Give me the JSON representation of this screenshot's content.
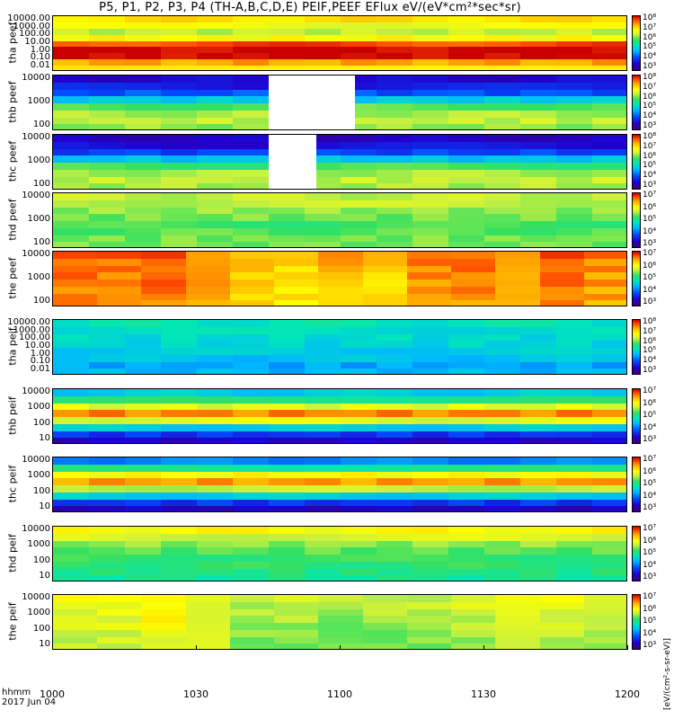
{
  "title": "P5, P1, P2, P3, P4 (TH-A,B,C,D,E) PEIF,PEEF EFlux eV/(eV*cm²*sec*sr)",
  "x_axis": {
    "label_unit": "hhmm",
    "date": "2017 Jun 04",
    "ticks": [
      "1000",
      "1030",
      "1100",
      "1130",
      "1200"
    ]
  },
  "colorbar_unit": "[eV/(cm²-s-sr-eV)]",
  "chart_data": [
    {
      "type": "heatmap",
      "panel": "tha_peef",
      "ylabel": "tha peef",
      "scale": "log",
      "yticks": [
        "10000.00",
        "1000.00",
        "100.00",
        "10.00",
        "1.00",
        "0.10",
        "0.01"
      ],
      "cbar_ticks": [
        "10⁸",
        "10⁷",
        "10⁶",
        "10⁵",
        "10⁴",
        "10³"
      ],
      "bands": [
        {
          "level": 0.78,
          "label": "top"
        },
        {
          "level": 0.72,
          "label": ""
        },
        {
          "level": 0.66,
          "label": ""
        },
        {
          "level": 0.74,
          "label": ""
        },
        {
          "level": 0.93,
          "label": ""
        },
        {
          "level": 1.0,
          "label": ""
        },
        {
          "level": 1.0,
          "label": ""
        },
        {
          "level": 0.85,
          "label": ""
        },
        {
          "level": 0.78,
          "label": "bottom"
        }
      ]
    },
    {
      "type": "heatmap",
      "panel": "thb_peef",
      "ylabel": "thb peef",
      "scale": "log",
      "yticks": [
        "10000",
        "1000",
        "100"
      ],
      "cbar_ticks": [
        "10⁸",
        "10⁷",
        "10⁶",
        "10⁵",
        "10⁴",
        "10³"
      ],
      "bands": [
        {
          "level": 0.12
        },
        {
          "level": 0.16
        },
        {
          "level": 0.24
        },
        {
          "level": 0.4
        },
        {
          "level": 0.58
        },
        {
          "level": 0.64
        },
        {
          "level": 0.66
        },
        {
          "level": 0.62
        }
      ],
      "gap": {
        "from_hhmm": "1045",
        "to_hhmm": "1103"
      }
    },
    {
      "type": "heatmap",
      "panel": "thc_peef",
      "ylabel": "thc peef",
      "scale": "log",
      "yticks": [
        "10000",
        "1000",
        "100"
      ],
      "cbar_ticks": [
        "10⁸",
        "10⁷",
        "10⁶",
        "10⁵",
        "10⁴",
        "10³"
      ],
      "bands": [
        {
          "level": 0.1
        },
        {
          "level": 0.14
        },
        {
          "level": 0.22
        },
        {
          "level": 0.38
        },
        {
          "level": 0.56
        },
        {
          "level": 0.64
        },
        {
          "level": 0.66
        },
        {
          "level": 0.64
        }
      ],
      "gap": {
        "from_hhmm": "1045",
        "to_hhmm": "1055"
      }
    },
    {
      "type": "heatmap",
      "panel": "thd_peef",
      "ylabel": "thd peef",
      "scale": "log",
      "yticks": [
        "10000",
        "1000",
        "100"
      ],
      "cbar_ticks": [
        "10⁷",
        "10⁶",
        "10⁵",
        "10⁴",
        "10³"
      ],
      "bands": [
        {
          "level": 0.66
        },
        {
          "level": 0.66
        },
        {
          "level": 0.62
        },
        {
          "level": 0.6
        },
        {
          "level": 0.56
        },
        {
          "level": 0.58
        },
        {
          "level": 0.6
        },
        {
          "level": 0.6
        }
      ]
    },
    {
      "type": "heatmap",
      "panel": "the_peef",
      "ylabel": "the peef",
      "scale": "log",
      "yticks": [
        "10000",
        "1000",
        "100"
      ],
      "cbar_ticks": [
        "10⁷",
        "10⁶",
        "10⁵",
        "10⁴",
        "10³"
      ],
      "bands": [
        {
          "level": 0.9
        },
        {
          "level": 0.88
        },
        {
          "level": 0.86
        },
        {
          "level": 0.84
        },
        {
          "level": 0.84
        },
        {
          "level": 0.82
        },
        {
          "level": 0.82
        },
        {
          "level": 0.8
        }
      ],
      "columns": [
        0.95,
        0.92,
        0.97,
        0.85,
        0.78,
        0.72,
        0.8,
        0.74,
        0.9,
        0.93,
        0.84,
        0.96,
        0.88
      ]
    },
    {
      "type": "heatmap",
      "panel": "tha_peif",
      "ylabel": "tha peif",
      "scale": "log",
      "yticks": [
        "10000.00",
        "1000.00",
        "100.00",
        "10.00",
        "1.00",
        "0.10",
        "0.01"
      ],
      "cbar_ticks": [
        "10⁸",
        "10⁷",
        "10⁶",
        "10⁵",
        "10⁴",
        "10³"
      ],
      "bands": [
        {
          "level": 0.46
        },
        {
          "level": 0.44
        },
        {
          "level": 0.43
        },
        {
          "level": 0.42
        },
        {
          "level": 0.4
        },
        {
          "level": 0.38
        },
        {
          "level": 0.34
        },
        {
          "level": 0.36
        }
      ]
    },
    {
      "type": "heatmap",
      "panel": "thb_peif",
      "ylabel": "thb peif",
      "scale": "log",
      "yticks": [
        "10000",
        "1000",
        "100",
        "10"
      ],
      "cbar_ticks": [
        "10⁷",
        "10⁶",
        "10⁵",
        "10⁴",
        "10³"
      ],
      "bands": [
        {
          "level": 0.4
        },
        {
          "level": 0.52
        },
        {
          "level": 0.7
        },
        {
          "level": 0.88
        },
        {
          "level": 0.7
        },
        {
          "level": 0.4
        },
        {
          "level": 0.2
        },
        {
          "level": 0.1
        }
      ]
    },
    {
      "type": "heatmap",
      "panel": "thc_peif",
      "ylabel": "thc peif",
      "scale": "log",
      "yticks": [
        "10000",
        "1000",
        "100",
        "10"
      ],
      "cbar_ticks": [
        "10⁷",
        "10⁶",
        "10⁵",
        "10⁴",
        "10³"
      ],
      "bands": [
        {
          "level": 0.3
        },
        {
          "level": 0.5
        },
        {
          "level": 0.74
        },
        {
          "level": 0.86
        },
        {
          "level": 0.66
        },
        {
          "level": 0.4
        },
        {
          "level": 0.2
        },
        {
          "level": 0.1
        }
      ]
    },
    {
      "type": "heatmap",
      "panel": "thd_peif",
      "ylabel": "thd peif",
      "scale": "log",
      "yticks": [
        "10000",
        "1000",
        "100",
        "10"
      ],
      "cbar_ticks": [
        "10⁷",
        "10⁶",
        "10⁵",
        "10⁴",
        "10³"
      ],
      "bands": [
        {
          "level": 0.74
        },
        {
          "level": 0.68
        },
        {
          "level": 0.62
        },
        {
          "level": 0.58
        },
        {
          "level": 0.55
        },
        {
          "level": 0.54
        },
        {
          "level": 0.52
        },
        {
          "level": 0.5
        }
      ]
    },
    {
      "type": "heatmap",
      "panel": "the_peif",
      "ylabel": "the peif",
      "scale": "log",
      "yticks": [
        "10000",
        "1000",
        "100",
        "10"
      ],
      "cbar_ticks": [
        "10⁷",
        "10⁶",
        "10⁵",
        "10⁴",
        "10³"
      ],
      "bands": [
        {
          "level": 0.72
        },
        {
          "level": 0.7
        },
        {
          "level": 0.68
        },
        {
          "level": 0.66
        },
        {
          "level": 0.64
        },
        {
          "level": 0.62
        },
        {
          "level": 0.6
        },
        {
          "level": 0.6
        }
      ],
      "columns": [
        0.72,
        0.74,
        0.82,
        0.74,
        0.6,
        0.62,
        0.58,
        0.6,
        0.62,
        0.66,
        0.68,
        0.7,
        0.66
      ]
    }
  ]
}
